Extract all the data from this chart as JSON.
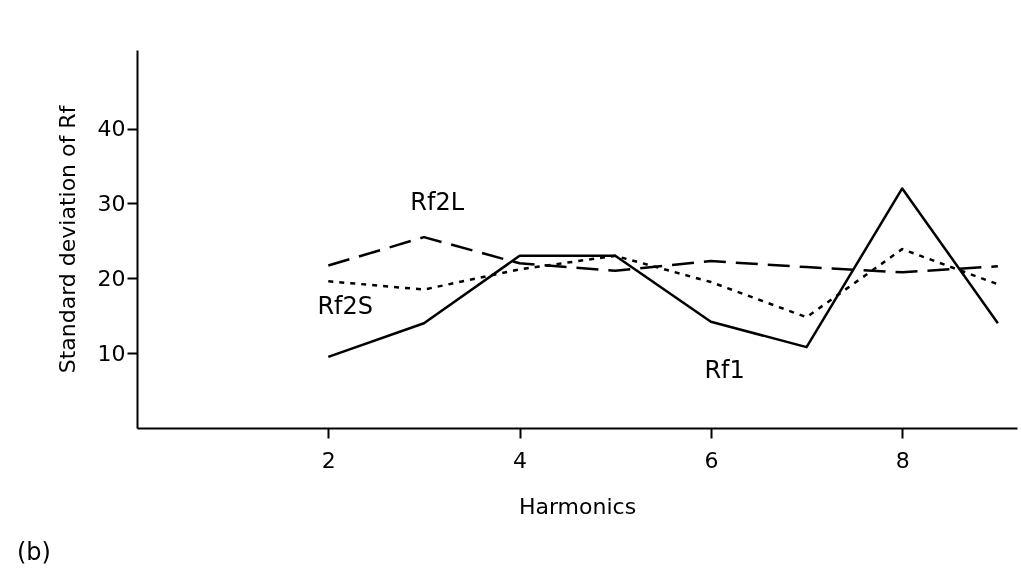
{
  "chart_data": {
    "type": "line",
    "xlabel": "Harmonics",
    "ylabel": "Standard deviation of Rf",
    "x": [
      2,
      3,
      4,
      5,
      6,
      7,
      8,
      9
    ],
    "series": [
      {
        "color": "#000000",
        "line_style": "solid",
        "values": [
          9.5,
          14,
          23,
          23,
          14.2,
          10.8,
          32,
          14
        ]
      },
      {
        "color": "#000000",
        "line_style": "dashed",
        "values": [
          21.7,
          25.5,
          22,
          21,
          22.3,
          21.5,
          20.8,
          21.6
        ]
      },
      {
        "color": "#000000",
        "line_style": "dotted",
        "values": [
          19.6,
          18.5,
          21.2,
          23,
          19.5,
          14.8,
          23.9,
          19.2
        ]
      }
    ],
    "xlim": [
      0,
      9.2
    ],
    "ylim": [
      0,
      50.5
    ],
    "xticks": [
      2,
      4,
      6,
      8
    ],
    "yticks": [
      10,
      20,
      30,
      40
    ],
    "grid": false,
    "marker": "none",
    "annotations": [
      {
        "text": "Rf2L",
        "x": 3.4,
        "y": 24.1
      },
      {
        "text": "Rf2S",
        "x": 2.7,
        "y": 18.9
      },
      {
        "text": "Rf1",
        "x": 6.3,
        "y": 13.2
      },
      "(b)"
    ]
  }
}
